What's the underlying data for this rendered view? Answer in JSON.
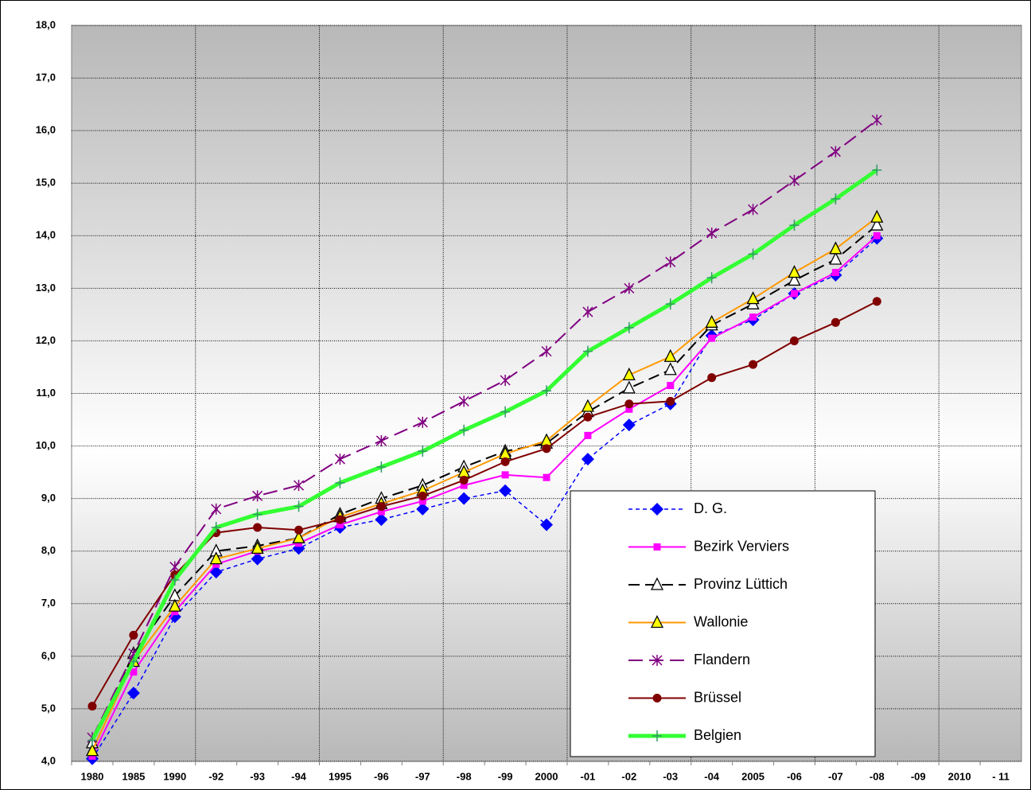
{
  "chart_data": {
    "type": "line",
    "categories": [
      "1980",
      "1985",
      "1990",
      "-92",
      "-93",
      "-94",
      "1995",
      "-96",
      "-97",
      "-98",
      "-99",
      "2000",
      "-01",
      "-02",
      "-03",
      "-04",
      "2005",
      "-06",
      "-07",
      "-08",
      "-09",
      "2010",
      "- 11"
    ],
    "ylim": [
      4,
      18
    ],
    "yticks": [
      {
        "value": 4,
        "label": "4,0"
      },
      {
        "value": 5,
        "label": "5,0"
      },
      {
        "value": 6,
        "label": "6,0"
      },
      {
        "value": 7,
        "label": "7,0"
      },
      {
        "value": 8,
        "label": "8,0"
      },
      {
        "value": 9,
        "label": "9,0"
      },
      {
        "value": 10,
        "label": "10,0"
      },
      {
        "value": 11,
        "label": "11,0"
      },
      {
        "value": 12,
        "label": "12,0"
      },
      {
        "value": 13,
        "label": "13,0"
      },
      {
        "value": 14,
        "label": "14,0"
      },
      {
        "value": 15,
        "label": "15,0"
      },
      {
        "value": 16,
        "label": "16,0"
      },
      {
        "value": 17,
        "label": "17,0"
      },
      {
        "value": 18,
        "label": "18,0"
      }
    ],
    "grid": true,
    "series": [
      {
        "name": "D. G.",
        "color": "#0000ff",
        "values": [
          4.05,
          5.3,
          6.75,
          7.6,
          7.85,
          8.05,
          8.45,
          8.6,
          8.8,
          9.0,
          9.15,
          8.5,
          9.75,
          10.4,
          10.8,
          12.1,
          12.4,
          12.9,
          13.25,
          13.95,
          null,
          null,
          null
        ]
      },
      {
        "name": "Bezirk Verviers",
        "color": "#ff00ff",
        "values": [
          4.1,
          5.7,
          6.85,
          7.75,
          8.0,
          8.15,
          8.5,
          8.75,
          8.95,
          9.25,
          9.45,
          9.4,
          10.2,
          10.7,
          11.15,
          12.05,
          12.45,
          12.9,
          13.3,
          14.0,
          null,
          null,
          null
        ]
      },
      {
        "name": "Provinz Lüttich",
        "color": "#000000",
        "values": [
          4.35,
          6.05,
          7.15,
          8.0,
          8.1,
          8.25,
          8.7,
          9.0,
          9.25,
          9.6,
          9.9,
          10.05,
          10.65,
          11.1,
          11.45,
          12.3,
          12.7,
          13.15,
          13.55,
          14.2,
          null,
          null,
          null
        ]
      },
      {
        "name": "Wallonie",
        "color": "#ff9900",
        "values": [
          4.2,
          5.9,
          6.95,
          7.85,
          8.05,
          8.25,
          8.65,
          8.9,
          9.15,
          9.5,
          9.85,
          10.1,
          10.75,
          11.35,
          11.7,
          12.35,
          12.8,
          13.3,
          13.75,
          14.35,
          null,
          null,
          null
        ]
      },
      {
        "name": "Flandern",
        "color": "#800080",
        "values": [
          4.45,
          6.05,
          7.7,
          8.8,
          9.05,
          9.25,
          9.75,
          10.1,
          10.45,
          10.85,
          11.25,
          11.8,
          12.55,
          13.0,
          13.5,
          14.05,
          14.5,
          15.05,
          15.6,
          16.2,
          null,
          null,
          null
        ]
      },
      {
        "name": "Brüssel",
        "color": "#800000",
        "values": [
          5.05,
          6.4,
          7.55,
          8.35,
          8.45,
          8.4,
          8.6,
          8.85,
          9.05,
          9.35,
          9.7,
          9.95,
          10.55,
          10.8,
          10.85,
          11.3,
          11.55,
          12.0,
          12.35,
          12.75,
          null,
          null,
          null
        ]
      },
      {
        "name": "Belgien",
        "color": "#33ff33",
        "values": [
          4.4,
          5.9,
          7.45,
          8.45,
          8.7,
          8.85,
          9.3,
          9.6,
          9.9,
          10.3,
          10.65,
          11.05,
          11.8,
          12.25,
          12.7,
          13.2,
          13.65,
          14.2,
          14.7,
          15.25,
          null,
          null,
          null
        ]
      }
    ]
  }
}
